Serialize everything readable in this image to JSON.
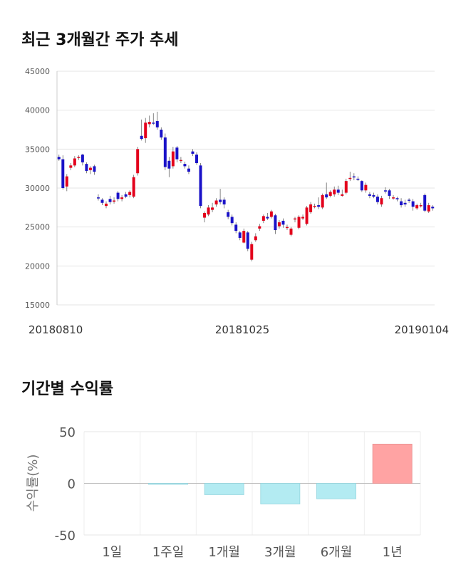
{
  "titles": {
    "price_trend": "최근 3개월간 주가 추세",
    "period_returns": "기간별 수익률"
  },
  "colors": {
    "up": "#e3001b",
    "down": "#1a12c8",
    "positive_bar": "#ffa3a3",
    "negative_bar": "#b3ebf2",
    "grid": "#e6e6e6"
  },
  "chart_data": [
    {
      "type": "candlestick",
      "title": "최근 3개월간 주가 추세",
      "ylim": [
        15000,
        45000
      ],
      "yticks": [
        45000,
        40000,
        35000,
        30000,
        25000,
        20000,
        15000
      ],
      "xtick_labels": [
        "20180810",
        "20181025",
        "20190104"
      ],
      "candles": [
        [
          34000,
          33700,
          34300,
          33500
        ],
        [
          33700,
          30000,
          34200,
          29800
        ],
        [
          30200,
          31500,
          31800,
          29600
        ],
        [
          32600,
          32900,
          33200,
          32300
        ],
        [
          32900,
          33800,
          34100,
          32700
        ],
        [
          33900,
          34000,
          34200,
          33600
        ],
        [
          34300,
          33300,
          34400,
          32900
        ],
        [
          33100,
          32200,
          33300,
          31900
        ],
        [
          32300,
          32600,
          32800,
          31800
        ],
        [
          32800,
          32100,
          33000,
          31700
        ],
        [
          28800,
          28700,
          29200,
          28400
        ],
        [
          28500,
          28100,
          28700,
          27800
        ],
        [
          27700,
          28000,
          28300,
          27400
        ],
        [
          28600,
          28200,
          29000,
          27900
        ],
        [
          28300,
          28400,
          28800,
          28000
        ],
        [
          29400,
          28600,
          29600,
          28300
        ],
        [
          28600,
          28800,
          29100,
          28300
        ],
        [
          29200,
          28900,
          29500,
          28700
        ],
        [
          29100,
          29500,
          29700,
          28800
        ],
        [
          28900,
          31400,
          31700,
          28700
        ],
        [
          31900,
          35000,
          35300,
          31600
        ],
        [
          36700,
          36300,
          38800,
          36100
        ],
        [
          36400,
          38400,
          39000,
          35800
        ],
        [
          38200,
          38500,
          39300,
          37800
        ],
        [
          38400,
          38300,
          39600,
          38100
        ],
        [
          38600,
          37800,
          39800,
          37500
        ],
        [
          37500,
          36500,
          37800,
          36200
        ],
        [
          36500,
          32700,
          37000,
          32300
        ],
        [
          33500,
          32500,
          34000,
          31400
        ],
        [
          32800,
          34700,
          35300,
          32500
        ],
        [
          35200,
          33700,
          35400,
          33300
        ],
        [
          33600,
          33600,
          34000,
          33200
        ],
        [
          33100,
          32800,
          33400,
          32500
        ],
        [
          32500,
          32100,
          32900,
          31800
        ],
        [
          34700,
          34400,
          35000,
          34100
        ],
        [
          34300,
          33200,
          34600,
          33000
        ],
        [
          32900,
          27700,
          33200,
          27400
        ],
        [
          26200,
          26800,
          27000,
          25600
        ],
        [
          26600,
          27500,
          27800,
          26400
        ],
        [
          27200,
          27500,
          28100,
          26900
        ],
        [
          27900,
          28400,
          28700,
          27600
        ],
        [
          28500,
          28200,
          29900,
          27900
        ],
        [
          28500,
          27900,
          28800,
          27400
        ],
        [
          26900,
          26300,
          27200,
          26000
        ],
        [
          26300,
          25500,
          26600,
          25200
        ],
        [
          25300,
          24500,
          25600,
          24200
        ],
        [
          24300,
          23600,
          24500,
          23300
        ],
        [
          23000,
          24500,
          24800,
          22900
        ],
        [
          24300,
          22200,
          24500,
          21900
        ],
        [
          20800,
          22800,
          23100,
          20600
        ],
        [
          23300,
          23800,
          24200,
          23100
        ],
        [
          24800,
          25100,
          25400,
          24500
        ],
        [
          25800,
          26400,
          26600,
          25500
        ],
        [
          26300,
          26100,
          26800,
          25900
        ],
        [
          26300,
          27000,
          27200,
          26100
        ],
        [
          26500,
          24600,
          26700,
          24100
        ],
        [
          25100,
          25600,
          25900,
          24800
        ],
        [
          25800,
          25300,
          26100,
          24900
        ],
        [
          24900,
          25000,
          25300,
          24600
        ],
        [
          24000,
          24800,
          25000,
          23800
        ],
        [
          26100,
          26100,
          26300,
          25600
        ],
        [
          24900,
          26300,
          26500,
          24700
        ],
        [
          26100,
          26300,
          26600,
          25900
        ],
        [
          25400,
          27500,
          27700,
          25200
        ],
        [
          26900,
          27900,
          28200,
          26700
        ],
        [
          27700,
          27700,
          28000,
          27400
        ],
        [
          27800,
          27600,
          28800,
          27300
        ],
        [
          27500,
          29100,
          29300,
          27300
        ],
        [
          29200,
          28800,
          30700,
          28600
        ],
        [
          29000,
          29500,
          29700,
          28800
        ],
        [
          29200,
          29800,
          30200,
          28900
        ],
        [
          29800,
          29400,
          30300,
          29100
        ],
        [
          29000,
          29200,
          29800,
          28900
        ],
        [
          29400,
          30900,
          31200,
          29200
        ],
        [
          31300,
          31300,
          32100,
          30900
        ],
        [
          31500,
          31400,
          31900,
          31000
        ],
        [
          31200,
          31100,
          31500,
          30900
        ],
        [
          30900,
          29700,
          31000,
          29500
        ],
        [
          29700,
          30400,
          30700,
          29400
        ],
        [
          29200,
          29000,
          29500,
          28700
        ],
        [
          29100,
          28900,
          29400,
          28700
        ],
        [
          28900,
          28200,
          29200,
          27900
        ],
        [
          27900,
          28700,
          29000,
          27600
        ],
        [
          29700,
          29600,
          30100,
          29300
        ],
        [
          29700,
          29000,
          29900,
          28600
        ],
        [
          28800,
          28800,
          29100,
          28500
        ],
        [
          28700,
          28600,
          28900,
          28300
        ],
        [
          28300,
          27800,
          28700,
          27500
        ],
        [
          28100,
          27900,
          28500,
          27600
        ],
        [
          28500,
          28400,
          28700,
          28100
        ],
        [
          28300,
          27600,
          28600,
          27100
        ],
        [
          27400,
          27800,
          28000,
          27200
        ],
        [
          27800,
          27800,
          28100,
          27500
        ],
        [
          29100,
          27100,
          29300,
          26900
        ],
        [
          27000,
          27800,
          28100,
          26800
        ],
        [
          27600,
          27400,
          27800,
          27100
        ]
      ]
    },
    {
      "type": "bar",
      "title": "기간별 수익률",
      "ylabel": "수익률(%)",
      "ylim": [
        -50,
        50
      ],
      "yticks": [
        50,
        0,
        -50
      ],
      "categories": [
        "1일",
        "1주일",
        "1개월",
        "3개월",
        "6개월",
        "1년"
      ],
      "values": [
        0,
        -1,
        -11,
        -20,
        -15,
        38
      ]
    }
  ]
}
